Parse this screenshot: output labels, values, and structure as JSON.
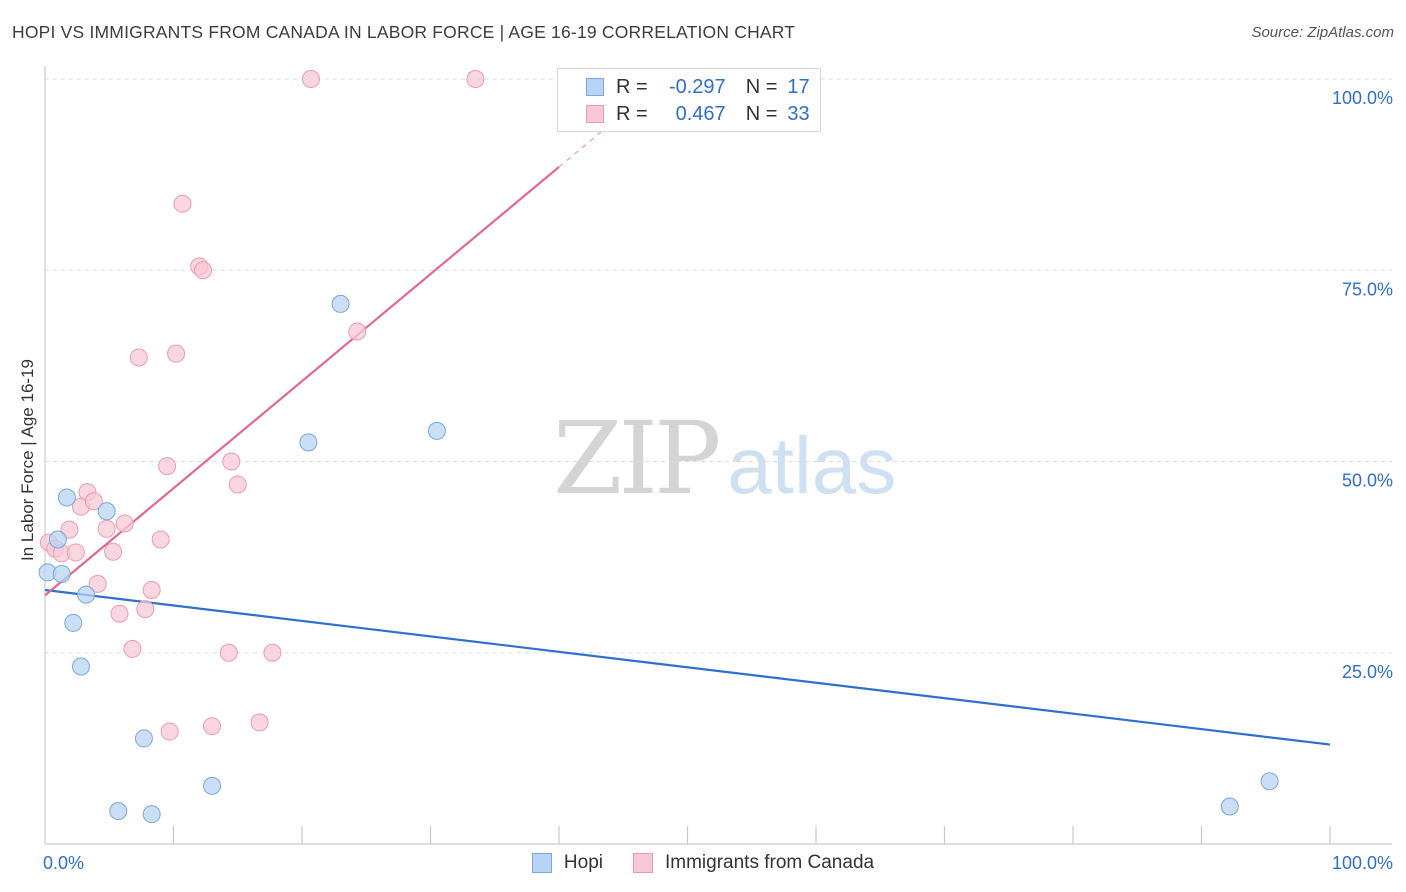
{
  "title": "HOPI VS IMMIGRANTS FROM CANADA IN LABOR FORCE | AGE 16-19 CORRELATION CHART",
  "source": "Source: ZipAtlas.com",
  "watermark": {
    "zip": "ZIP",
    "atlas": "atlas"
  },
  "colors": {
    "hopi_fill": "#b8d3f3",
    "hopi_stroke": "#7aa7dc",
    "hopi_line": "#2f6fd0",
    "canada_fill": "#f8c8d6",
    "canada_stroke": "#eb9ab2",
    "canada_line": "#e06891",
    "axis_label": "#2f6fca",
    "grid": "#dcdcdc"
  },
  "legend": {
    "hopi": {
      "r_label": "R =",
      "r_value": "-0.297",
      "n_label": "N =",
      "n_value": "17"
    },
    "canada": {
      "r_label": "R =",
      "r_value": "0.467",
      "n_label": "N =",
      "n_value": "33"
    }
  },
  "chart_data": {
    "type": "scatter",
    "title": "HOPI VS IMMIGRANTS FROM CANADA IN LABOR FORCE | AGE 16-19 CORRELATION CHART",
    "xlabel": "",
    "ylabel": "In Labor Force | Age 16-19",
    "xlim": [
      0,
      100
    ],
    "ylim": [
      0,
      100
    ],
    "x_tick_labels": [
      "0.0%",
      "100.0%"
    ],
    "y_ticks": [
      25,
      50,
      75,
      100
    ],
    "y_tick_labels": [
      "25.0%",
      "50.0%",
      "75.0%",
      "100.0%"
    ],
    "grid": true,
    "legend_entries": [
      "Hopi",
      "Immigrants from Canada"
    ],
    "series": [
      {
        "name": "Hopi",
        "points": [
          [
            0.2,
            35.5
          ],
          [
            1.0,
            39.8
          ],
          [
            1.3,
            35.3
          ],
          [
            1.7,
            45.3
          ],
          [
            2.2,
            28.9
          ],
          [
            2.8,
            23.2
          ],
          [
            3.2,
            32.6
          ],
          [
            4.8,
            43.5
          ],
          [
            5.7,
            4.3
          ],
          [
            7.7,
            13.8
          ],
          [
            8.3,
            3.9
          ],
          [
            13.0,
            7.6
          ],
          [
            20.5,
            52.5
          ],
          [
            23.0,
            70.6
          ],
          [
            30.5,
            54.0
          ],
          [
            92.2,
            4.9
          ],
          [
            95.3,
            8.2
          ]
        ],
        "trend": {
          "x0": 0,
          "y0": 33.2,
          "x1": 100,
          "y1": 13.0
        }
      },
      {
        "name": "Immigrants from Canada",
        "points": [
          [
            0.3,
            39.4
          ],
          [
            0.8,
            38.6
          ],
          [
            1.3,
            38.0
          ],
          [
            1.9,
            41.1
          ],
          [
            2.4,
            38.1
          ],
          [
            2.8,
            44.1
          ],
          [
            3.3,
            46.0
          ],
          [
            3.8,
            44.8
          ],
          [
            4.1,
            34.0
          ],
          [
            4.8,
            41.2
          ],
          [
            5.3,
            38.2
          ],
          [
            5.8,
            30.1
          ],
          [
            6.2,
            41.9
          ],
          [
            6.8,
            25.5
          ],
          [
            7.3,
            63.6
          ],
          [
            7.8,
            30.7
          ],
          [
            8.3,
            33.2
          ],
          [
            9.0,
            39.8
          ],
          [
            9.5,
            49.4
          ],
          [
            9.7,
            14.7
          ],
          [
            10.2,
            64.1
          ],
          [
            10.7,
            83.7
          ],
          [
            12.0,
            75.5
          ],
          [
            12.3,
            75.0
          ],
          [
            13.0,
            15.4
          ],
          [
            14.3,
            25.0
          ],
          [
            14.5,
            50.0
          ],
          [
            15.0,
            47.0
          ],
          [
            16.7,
            15.9
          ],
          [
            17.7,
            25.0
          ],
          [
            20.7,
            100.0
          ],
          [
            24.3,
            67.0
          ],
          [
            33.5,
            100.0
          ]
        ],
        "trend": {
          "x0": 0,
          "y0": 32.5,
          "x1": 40,
          "y1": 88.5,
          "dash_to_x": 43.5
        }
      }
    ]
  }
}
